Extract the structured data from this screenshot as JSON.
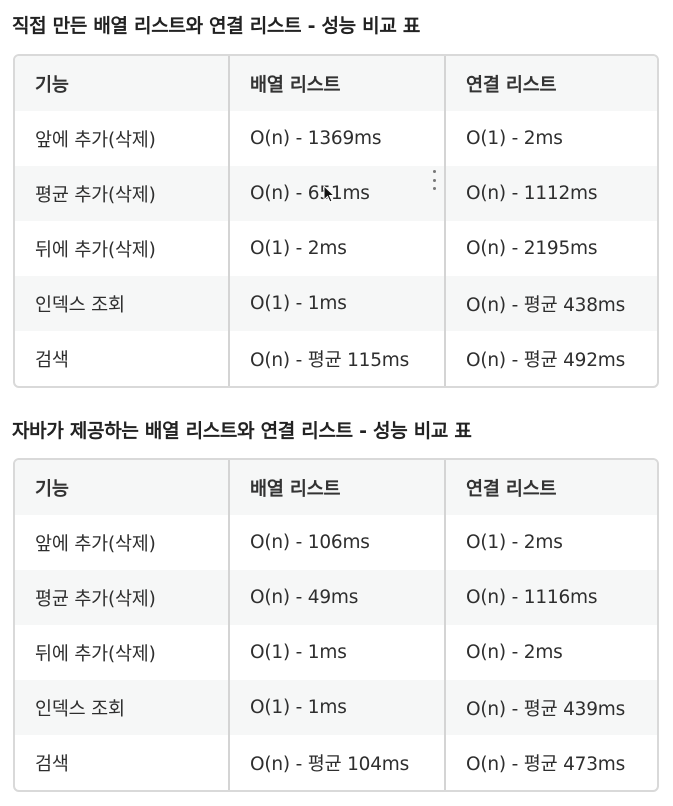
{
  "sections": [
    {
      "title": "직접 만든 배열 리스트와 연결 리스트 - 성능 비교 표",
      "headers": [
        "기능",
        "배열 리스트",
        "연결 리스트"
      ],
      "rows": [
        [
          "앞에 추가(삭제)",
          "O(n) - 1369ms",
          "O(1) - 2ms"
        ],
        [
          "평균 추가(삭제)",
          "O(n) - 651ms",
          "O(n) - 1112ms"
        ],
        [
          "뒤에 추가(삭제)",
          "O(1) - 2ms",
          "O(n) - 2195ms"
        ],
        [
          "인덱스 조회",
          "O(1) - 1ms",
          "O(n) - 평균 438ms"
        ],
        [
          "검색",
          "O(n) - 평균 115ms",
          "O(n) - 평균 492ms"
        ]
      ]
    },
    {
      "title": "자바가 제공하는 배열 리스트와 연결 리스트 - 성능 비교 표",
      "headers": [
        "기능",
        "배열 리스트",
        "연결 리스트"
      ],
      "rows": [
        [
          "앞에 추가(삭제)",
          "O(n) - 106ms",
          "O(1) - 2ms"
        ],
        [
          "평균 추가(삭제)",
          "O(n) - 49ms",
          "O(n) - 1116ms"
        ],
        [
          "뒤에 추가(삭제)",
          "O(1) - 1ms",
          "O(n) - 2ms"
        ],
        [
          "인덱스 조회",
          "O(1) - 1ms",
          "O(n) - 평균 439ms"
        ],
        [
          "검색",
          "O(n) - 평균 104ms",
          "O(n) - 평균 473ms"
        ]
      ]
    }
  ],
  "icons": {
    "menu": "more-vert-icon",
    "cursor": "mouse-pointer-icon"
  },
  "colors": {
    "header_bg": "#f6f7f7",
    "border": "#d9d9d9",
    "row_shade": "#f6f7f7"
  }
}
